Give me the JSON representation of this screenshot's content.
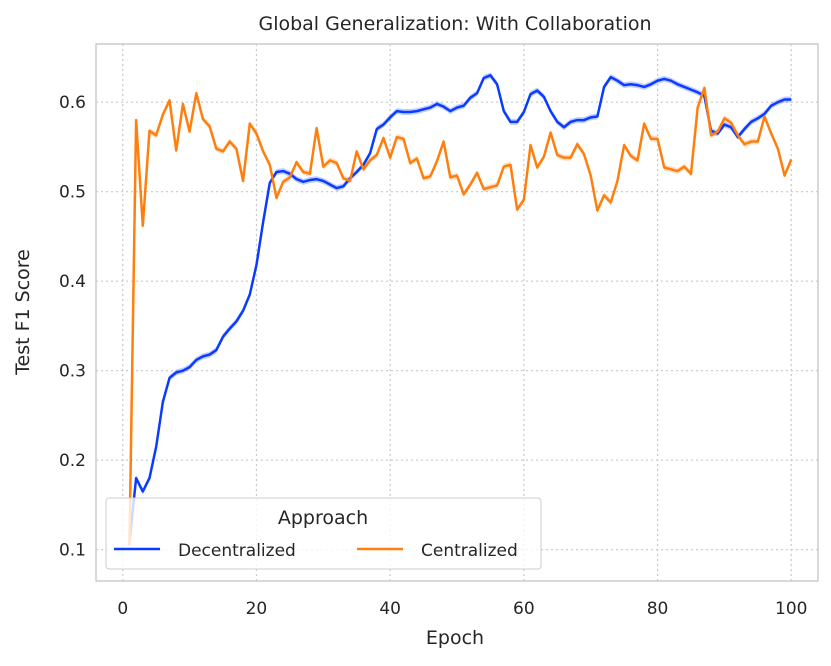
{
  "chart_data": {
    "type": "line",
    "title": "Global Generalization: With Collaboration",
    "xlabel": "Epoch",
    "ylabel": "Test F1 Score",
    "xlim": [
      -4,
      104
    ],
    "ylim": [
      0.065,
      0.665
    ],
    "xticks": [
      0,
      20,
      40,
      60,
      80,
      100
    ],
    "yticks": [
      0.1,
      0.2,
      0.3,
      0.4,
      0.5,
      0.6
    ],
    "ytick_labels": [
      "0.1",
      "0.2",
      "0.3",
      "0.4",
      "0.5",
      "0.6"
    ],
    "grid": true,
    "legend": {
      "title": "Approach",
      "placement": "lower-left"
    },
    "x": [
      1,
      2,
      3,
      4,
      5,
      6,
      7,
      8,
      9,
      10,
      11,
      12,
      13,
      14,
      15,
      16,
      17,
      18,
      19,
      20,
      21,
      22,
      23,
      24,
      25,
      26,
      27,
      28,
      29,
      30,
      31,
      32,
      33,
      34,
      35,
      36,
      37,
      38,
      39,
      40,
      41,
      42,
      43,
      44,
      45,
      46,
      47,
      48,
      49,
      50,
      51,
      52,
      53,
      54,
      55,
      56,
      57,
      58,
      59,
      60,
      61,
      62,
      63,
      64,
      65,
      66,
      67,
      68,
      69,
      70,
      71,
      72,
      73,
      74,
      75,
      76,
      77,
      78,
      79,
      80,
      81,
      82,
      83,
      84,
      85,
      86,
      87,
      88,
      89,
      90,
      91,
      92,
      93,
      94,
      95,
      96,
      97,
      98,
      99,
      100
    ],
    "series": [
      {
        "name": "Decentralized",
        "color": "#0a3cff",
        "values": [
          0.108,
          0.18,
          0.165,
          0.18,
          0.215,
          0.265,
          0.292,
          0.298,
          0.3,
          0.304,
          0.312,
          0.316,
          0.318,
          0.323,
          0.338,
          0.347,
          0.355,
          0.367,
          0.385,
          0.418,
          0.466,
          0.51,
          0.522,
          0.523,
          0.52,
          0.514,
          0.511,
          0.513,
          0.514,
          0.512,
          0.508,
          0.504,
          0.506,
          0.515,
          0.522,
          0.53,
          0.543,
          0.57,
          0.575,
          0.583,
          0.59,
          0.589,
          0.589,
          0.59,
          0.592,
          0.594,
          0.598,
          0.595,
          0.59,
          0.594,
          0.596,
          0.605,
          0.61,
          0.627,
          0.63,
          0.62,
          0.59,
          0.578,
          0.578,
          0.589,
          0.609,
          0.613,
          0.606,
          0.59,
          0.578,
          0.572,
          0.578,
          0.58,
          0.58,
          0.583,
          0.584,
          0.617,
          0.628,
          0.624,
          0.619,
          0.62,
          0.619,
          0.617,
          0.62,
          0.624,
          0.626,
          0.624,
          0.62,
          0.617,
          0.614,
          0.611,
          0.607,
          0.568,
          0.565,
          0.575,
          0.572,
          0.561,
          0.57,
          0.578,
          0.582,
          0.587,
          0.596,
          0.6,
          0.603,
          0.603
        ]
      },
      {
        "name": "Centralized",
        "color": "#ff7f0e",
        "values": [
          0.105,
          0.58,
          0.462,
          0.568,
          0.563,
          0.586,
          0.602,
          0.546,
          0.598,
          0.567,
          0.61,
          0.581,
          0.573,
          0.548,
          0.545,
          0.556,
          0.548,
          0.512,
          0.576,
          0.565,
          0.545,
          0.53,
          0.493,
          0.511,
          0.516,
          0.533,
          0.522,
          0.52,
          0.571,
          0.528,
          0.535,
          0.532,
          0.515,
          0.512,
          0.545,
          0.525,
          0.535,
          0.541,
          0.56,
          0.538,
          0.561,
          0.559,
          0.532,
          0.537,
          0.515,
          0.517,
          0.534,
          0.556,
          0.516,
          0.518,
          0.497,
          0.508,
          0.521,
          0.503,
          0.505,
          0.507,
          0.528,
          0.53,
          0.48,
          0.491,
          0.552,
          0.527,
          0.539,
          0.566,
          0.541,
          0.538,
          0.538,
          0.553,
          0.542,
          0.518,
          0.479,
          0.496,
          0.488,
          0.512,
          0.552,
          0.54,
          0.535,
          0.576,
          0.559,
          0.559,
          0.527,
          0.525,
          0.523,
          0.528,
          0.52,
          0.594,
          0.616,
          0.563,
          0.567,
          0.582,
          0.577,
          0.563,
          0.553,
          0.556,
          0.556,
          0.584,
          0.565,
          0.548,
          0.518,
          0.536
        ]
      }
    ]
  }
}
